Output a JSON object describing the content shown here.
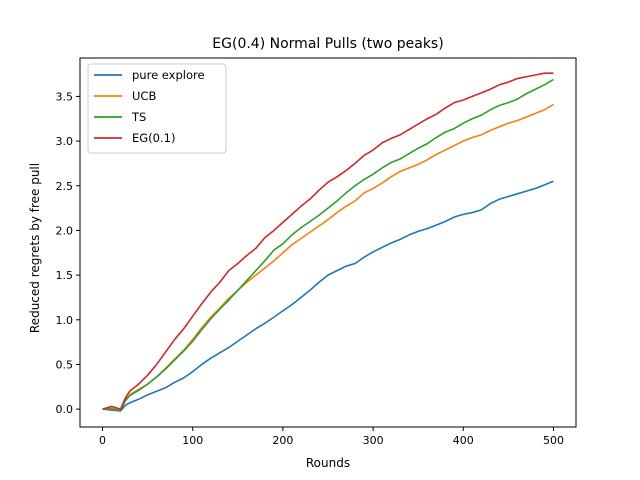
{
  "chart_data": {
    "type": "line",
    "title": "EG(0.4) Normal Pulls (two peaks)",
    "xlabel": "Rounds",
    "ylabel": "Reduced regrets by free pull",
    "xlim": [
      -25,
      525
    ],
    "ylim": [
      -0.2,
      3.93
    ],
    "xticks": [
      0,
      100,
      200,
      300,
      400,
      500
    ],
    "xtick_labels": [
      "0",
      "100",
      "200",
      "300",
      "400",
      "500"
    ],
    "yticks": [
      0.0,
      0.5,
      1.0,
      1.5,
      2.0,
      2.5,
      3.0,
      3.5
    ],
    "ytick_labels": [
      "0.0",
      "0.5",
      "1.0",
      "1.5",
      "2.0",
      "2.5",
      "3.0",
      "3.5"
    ],
    "grid": false,
    "legend_position": "top-left",
    "series": [
      {
        "name": "pure explore",
        "color": "#1f77b4",
        "x": [
          0,
          10,
          20,
          25,
          30,
          40,
          50,
          60,
          70,
          80,
          90,
          100,
          110,
          120,
          130,
          140,
          150,
          160,
          170,
          180,
          190,
          200,
          210,
          220,
          230,
          240,
          250,
          260,
          270,
          280,
          290,
          300,
          310,
          320,
          330,
          340,
          350,
          360,
          370,
          380,
          390,
          400,
          410,
          420,
          430,
          440,
          450,
          460,
          470,
          480,
          490,
          500
        ],
        "y": [
          0.0,
          -0.01,
          -0.02,
          0.04,
          0.07,
          0.11,
          0.16,
          0.2,
          0.24,
          0.3,
          0.35,
          0.42,
          0.5,
          0.57,
          0.63,
          0.69,
          0.76,
          0.83,
          0.9,
          0.96,
          1.03,
          1.1,
          1.17,
          1.25,
          1.33,
          1.42,
          1.5,
          1.55,
          1.6,
          1.63,
          1.7,
          1.76,
          1.81,
          1.86,
          1.9,
          1.95,
          1.99,
          2.02,
          2.06,
          2.1,
          2.15,
          2.18,
          2.2,
          2.23,
          2.3,
          2.35,
          2.38,
          2.41,
          2.44,
          2.47,
          2.51,
          2.55
        ]
      },
      {
        "name": "UCB",
        "color": "#ff7f0e",
        "x": [
          0,
          10,
          20,
          25,
          30,
          40,
          50,
          60,
          70,
          80,
          90,
          100,
          110,
          120,
          130,
          140,
          150,
          160,
          170,
          180,
          190,
          200,
          210,
          220,
          230,
          240,
          250,
          260,
          270,
          280,
          290,
          300,
          310,
          320,
          330,
          340,
          350,
          360,
          370,
          380,
          390,
          400,
          410,
          420,
          430,
          440,
          450,
          460,
          470,
          480,
          490,
          500
        ],
        "y": [
          0.0,
          0.01,
          -0.01,
          0.1,
          0.16,
          0.22,
          0.28,
          0.36,
          0.46,
          0.56,
          0.66,
          0.78,
          0.91,
          1.03,
          1.13,
          1.24,
          1.33,
          1.42,
          1.5,
          1.58,
          1.66,
          1.75,
          1.84,
          1.91,
          1.98,
          2.05,
          2.12,
          2.2,
          2.27,
          2.33,
          2.42,
          2.47,
          2.53,
          2.6,
          2.66,
          2.7,
          2.74,
          2.79,
          2.85,
          2.9,
          2.95,
          3.0,
          3.04,
          3.07,
          3.12,
          3.16,
          3.2,
          3.23,
          3.27,
          3.31,
          3.35,
          3.41
        ]
      },
      {
        "name": "TS",
        "color": "#2ca02c",
        "x": [
          0,
          10,
          20,
          25,
          30,
          40,
          50,
          60,
          70,
          80,
          90,
          100,
          110,
          120,
          130,
          140,
          150,
          160,
          170,
          180,
          190,
          200,
          210,
          220,
          230,
          240,
          250,
          260,
          270,
          280,
          290,
          300,
          310,
          320,
          330,
          340,
          350,
          360,
          370,
          380,
          390,
          400,
          410,
          420,
          430,
          440,
          450,
          460,
          470,
          480,
          490,
          500
        ],
        "y": [
          0.0,
          0.0,
          -0.02,
          0.09,
          0.15,
          0.21,
          0.28,
          0.36,
          0.45,
          0.55,
          0.65,
          0.76,
          0.89,
          1.01,
          1.12,
          1.22,
          1.33,
          1.44,
          1.55,
          1.66,
          1.78,
          1.85,
          1.95,
          2.03,
          2.1,
          2.17,
          2.25,
          2.33,
          2.42,
          2.5,
          2.57,
          2.63,
          2.7,
          2.76,
          2.8,
          2.86,
          2.92,
          2.97,
          3.04,
          3.1,
          3.14,
          3.2,
          3.25,
          3.29,
          3.35,
          3.4,
          3.43,
          3.47,
          3.53,
          3.58,
          3.63,
          3.69
        ]
      },
      {
        "name": "EG(0.1)",
        "color": "#d62728",
        "x": [
          0,
          10,
          20,
          25,
          30,
          40,
          50,
          60,
          70,
          80,
          90,
          100,
          110,
          120,
          130,
          140,
          150,
          160,
          170,
          180,
          190,
          200,
          210,
          220,
          230,
          240,
          250,
          260,
          270,
          280,
          290,
          300,
          310,
          320,
          330,
          340,
          350,
          360,
          370,
          380,
          390,
          400,
          410,
          420,
          430,
          440,
          450,
          460,
          470,
          480,
          490,
          500
        ],
        "y": [
          0.0,
          0.03,
          0.0,
          0.12,
          0.2,
          0.28,
          0.38,
          0.5,
          0.64,
          0.78,
          0.9,
          1.04,
          1.18,
          1.31,
          1.42,
          1.55,
          1.63,
          1.72,
          1.8,
          1.92,
          2.0,
          2.09,
          2.18,
          2.27,
          2.35,
          2.45,
          2.54,
          2.6,
          2.67,
          2.75,
          2.84,
          2.9,
          2.98,
          3.03,
          3.07,
          3.13,
          3.19,
          3.25,
          3.3,
          3.37,
          3.43,
          3.46,
          3.5,
          3.54,
          3.58,
          3.63,
          3.66,
          3.7,
          3.72,
          3.74,
          3.76,
          3.76
        ]
      }
    ]
  }
}
